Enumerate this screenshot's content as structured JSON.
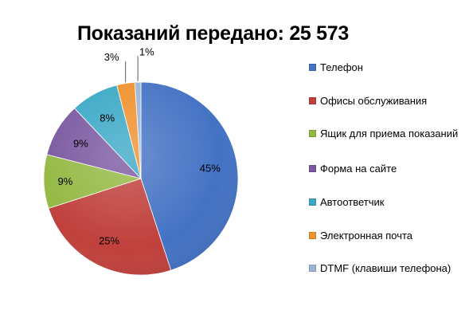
{
  "chart_data": {
    "type": "pie",
    "title": "Показаний передано: 25 573",
    "categories": [
      "Телефон",
      "Офисы обслуживания",
      "Ящик для приема показаний",
      "Форма на сайте",
      "Автоответчик",
      "Электронная почта",
      "DTMF (клавиши телефона)"
    ],
    "values": [
      45,
      25,
      9,
      9,
      8,
      3,
      1
    ],
    "data_labels": [
      "45%",
      "25%",
      "9%",
      "9%",
      "8%",
      "3%",
      "1%"
    ],
    "colors": [
      "#4472c4",
      "#c0403c",
      "#93b842",
      "#7a57a0",
      "#3aa8c6",
      "#f0912e",
      "#9db4d6"
    ],
    "legend_position": "right"
  }
}
